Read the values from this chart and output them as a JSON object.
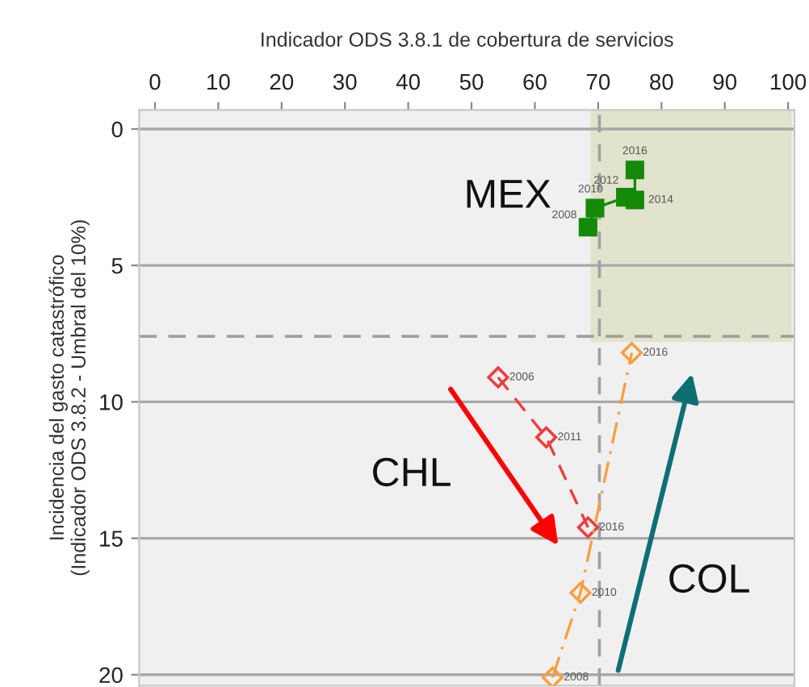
{
  "chart_data": {
    "type": "line",
    "xlabel": "Indicador ODS 3.8.1 de cobertura de servicios",
    "ylabel": "Incidencia del gasto catastrófico\n(Indicador ODS 3.8.2 - Umbral del 10%)",
    "xlim": [
      -2.5,
      101
    ],
    "ylim": [
      20.4,
      -0.7
    ],
    "xticks": [
      0,
      10,
      20,
      30,
      40,
      50,
      60,
      70,
      80,
      90,
      100
    ],
    "yticks": [
      0,
      5,
      10,
      15,
      20
    ],
    "grid": "y",
    "series": [
      {
        "name": "MEX",
        "color": "#138a08",
        "marker": "square",
        "line_style": "solid",
        "x": [
          68.4,
          69.5,
          74.3,
          75.8,
          75.8
        ],
        "values": [
          3.6,
          2.9,
          2.5,
          2.6,
          1.5
        ]
      },
      {
        "name": "CHL",
        "color": "#f03c3c",
        "marker": "diamond",
        "line_style": "dashed",
        "x": [
          54.2,
          61.8,
          68.4
        ],
        "values": [
          9.1,
          11.3,
          14.6
        ]
      },
      {
        "name": "COL",
        "color": "#f5a040",
        "marker": "diamond",
        "line_style": "dashdot",
        "x": [
          62.8,
          67.2,
          75.3
        ],
        "values": [
          20.1,
          17.0,
          8.2
        ]
      }
    ],
    "ref_lines": [
      {
        "axis": "x",
        "value": 70.2,
        "color": "#a0a0a0",
        "line_style": "dashed"
      },
      {
        "axis": "y",
        "value": 7.6,
        "color": "#a0a0a0",
        "line_style": "dashed"
      }
    ],
    "bands": [
      {
        "axis": "x",
        "from": 68.8,
        "to": 100.6,
        "color": "#e2e3cc"
      }
    ],
    "annotations": [
      {
        "text": "2008",
        "x": 68.4,
        "y": 3.6
      },
      {
        "text": "2010",
        "x": 69.5,
        "y": 2.9
      },
      {
        "text": "2012",
        "x": 74.3,
        "y": 2.5
      },
      {
        "text": "2014",
        "x": 75.8,
        "y": 2.6
      },
      {
        "text": "2016",
        "x": 75.8,
        "y": 1.5
      },
      {
        "text": "2006",
        "x": 54.2,
        "y": 9.1
      },
      {
        "text": "2011",
        "x": 61.8,
        "y": 11.3
      },
      {
        "text": "2016",
        "x": 68.4,
        "y": 14.6
      },
      {
        "text": "2008",
        "x": 62.8,
        "y": 20.1
      },
      {
        "text": "2010",
        "x": 67.2,
        "y": 17.0
      },
      {
        "text": "2016",
        "x": 75.3,
        "y": 8.2
      }
    ]
  }
}
